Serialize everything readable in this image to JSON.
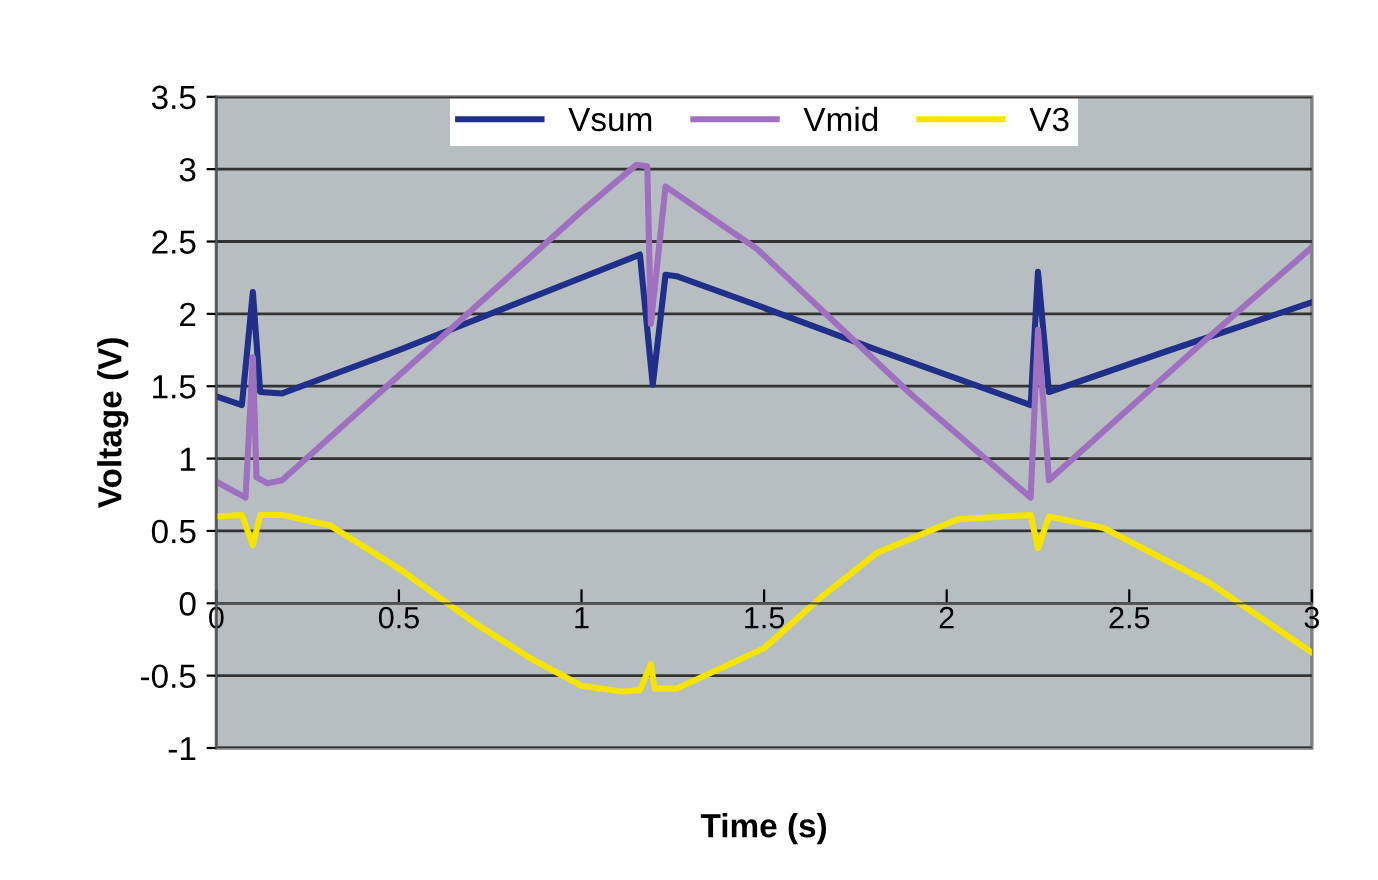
{
  "chart_data": {
    "type": "line",
    "xlabel": "Time (s)",
    "ylabel": "Voltage (V)",
    "xlim": [
      0,
      3
    ],
    "ylim": [
      -1,
      3.5
    ],
    "xticks": [
      0,
      0.5,
      1,
      1.5,
      2,
      2.5,
      3
    ],
    "yticks": [
      -1,
      -0.5,
      0,
      0.5,
      1,
      1.5,
      2,
      2.5,
      3,
      3.5
    ],
    "grid": "y",
    "legend": "top",
    "marker": "none",
    "line_style": "solid",
    "series": [
      {
        "name": "Vsum",
        "color": "#1f2f8a",
        "x": [
          0,
          0.07,
          0.1,
          0.12,
          0.18,
          0.5,
          0.8,
          1.16,
          1.195,
          1.23,
          1.26,
          1.48,
          1.8,
          2.23,
          2.25,
          2.28,
          2.6,
          3
        ],
        "values": [
          1.43,
          1.37,
          2.15,
          1.46,
          1.45,
          1.75,
          2.05,
          2.41,
          1.51,
          2.27,
          2.26,
          2.06,
          1.76,
          1.37,
          2.29,
          1.46,
          1.74,
          2.08
        ]
      },
      {
        "name": "Vmid",
        "color": "#a070c0",
        "x": [
          0,
          0.08,
          0.1,
          0.11,
          0.14,
          0.18,
          0.6,
          1.0,
          1.15,
          1.18,
          1.19,
          1.23,
          1.48,
          1.9,
          2.23,
          2.25,
          2.28,
          2.7,
          3
        ],
        "values": [
          0.84,
          0.73,
          1.7,
          0.87,
          0.83,
          0.85,
          1.8,
          2.71,
          3.03,
          3.02,
          1.93,
          2.88,
          2.45,
          1.45,
          0.73,
          1.89,
          0.85,
          1.8,
          2.46
        ]
      },
      {
        "name": "V3",
        "color": "#f5e400",
        "x": [
          0,
          0.07,
          0.1,
          0.12,
          0.18,
          0.31,
          0.5,
          0.71,
          0.86,
          1.0,
          1.11,
          1.16,
          1.19,
          1.2,
          1.26,
          1.5,
          1.66,
          1.81,
          2.03,
          2.23,
          2.25,
          2.28,
          2.43,
          2.72,
          3
        ],
        "values": [
          0.6,
          0.61,
          0.4,
          0.61,
          0.61,
          0.54,
          0.24,
          -0.14,
          -0.38,
          -0.57,
          -0.61,
          -0.6,
          -0.42,
          -0.59,
          -0.59,
          -0.31,
          0.05,
          0.35,
          0.58,
          0.61,
          0.38,
          0.6,
          0.52,
          0.14,
          -0.34
        ]
      }
    ]
  }
}
